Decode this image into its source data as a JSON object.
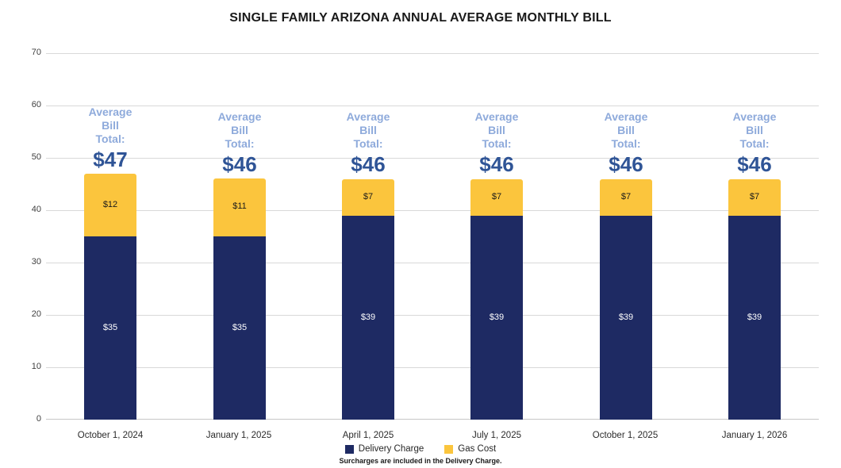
{
  "title": "SINGLE FAMILY ARIZONA ANNUAL AVERAGE MONTHLY BILL",
  "footnote": "Surcharges are included in the Delivery Charge.",
  "colors": {
    "delivery_charge": "#1e2a63",
    "gas_cost": "#fbc53d",
    "annotation_label": "#8eaadb",
    "annotation_total": "#2f5496",
    "gridline": "#d9d9d9",
    "axis_text": "#3f3f3f",
    "segment_label_on_navy": "#ffffff",
    "segment_label_on_gold": "#1a1a1a"
  },
  "legend": {
    "items": [
      {
        "label": "Delivery Charge",
        "color": "#1e2a63"
      },
      {
        "label": "Gas Cost",
        "color": "#fbc53d"
      }
    ]
  },
  "chart_data": {
    "type": "bar",
    "stacked": true,
    "title": "SINGLE FAMILY ARIZONA ANNUAL AVERAGE MONTHLY BILL",
    "xlabel": "",
    "ylabel": "",
    "ylim": [
      0,
      70
    ],
    "yticks": [
      0,
      10,
      20,
      30,
      40,
      50,
      60,
      70
    ],
    "grid": true,
    "legend_position": "bottom",
    "categories": [
      "October 1, 2024",
      "January 1, 2025",
      "April 1, 2025",
      "July 1, 2025",
      "October 1, 2025",
      "January 1, 2026"
    ],
    "series": [
      {
        "name": "Delivery Charge",
        "color": "#1e2a63",
        "values": [
          35,
          35,
          39,
          39,
          39,
          39
        ],
        "labels": [
          "$35",
          "$35",
          "$39",
          "$39",
          "$39",
          "$39"
        ],
        "label_color": "#ffffff"
      },
      {
        "name": "Gas Cost",
        "color": "#fbc53d",
        "values": [
          12,
          11,
          7,
          7,
          7,
          7
        ],
        "labels": [
          "$12",
          "$11",
          "$7",
          "$7",
          "$7",
          "$7"
        ],
        "label_color": "#1a1a1a"
      }
    ],
    "totals": [
      47,
      46,
      46,
      46,
      46,
      46
    ],
    "total_labels": [
      "$47",
      "$46",
      "$46",
      "$46",
      "$46",
      "$46"
    ],
    "annotation_lines": [
      "Average",
      "Bill",
      "Total:"
    ]
  }
}
